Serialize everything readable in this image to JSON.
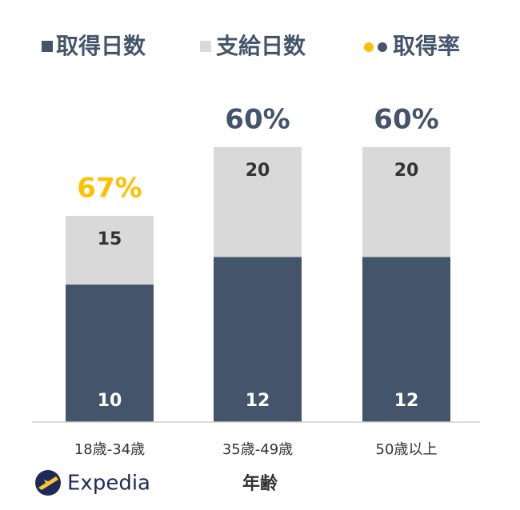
{
  "chart_data": {
    "type": "bar",
    "categories": [
      "18歳-34歳",
      "35歳-49歳",
      "50歳以上"
    ],
    "series": [
      {
        "name": "取得日数",
        "color": "#44546a",
        "values": [
          10,
          12,
          12
        ]
      },
      {
        "name": "支給日数",
        "color": "#d9d9d9",
        "values": [
          15,
          20,
          20
        ]
      },
      {
        "name": "取得率",
        "colors": [
          "#ffc000",
          "#44546a",
          "#44546a"
        ],
        "values": [
          67,
          60,
          60
        ],
        "value_labels": [
          "67%",
          "60%",
          "60%"
        ]
      }
    ],
    "xlabel": "年齢",
    "ylim": [
      0,
      20
    ],
    "brand": "Expedia"
  }
}
